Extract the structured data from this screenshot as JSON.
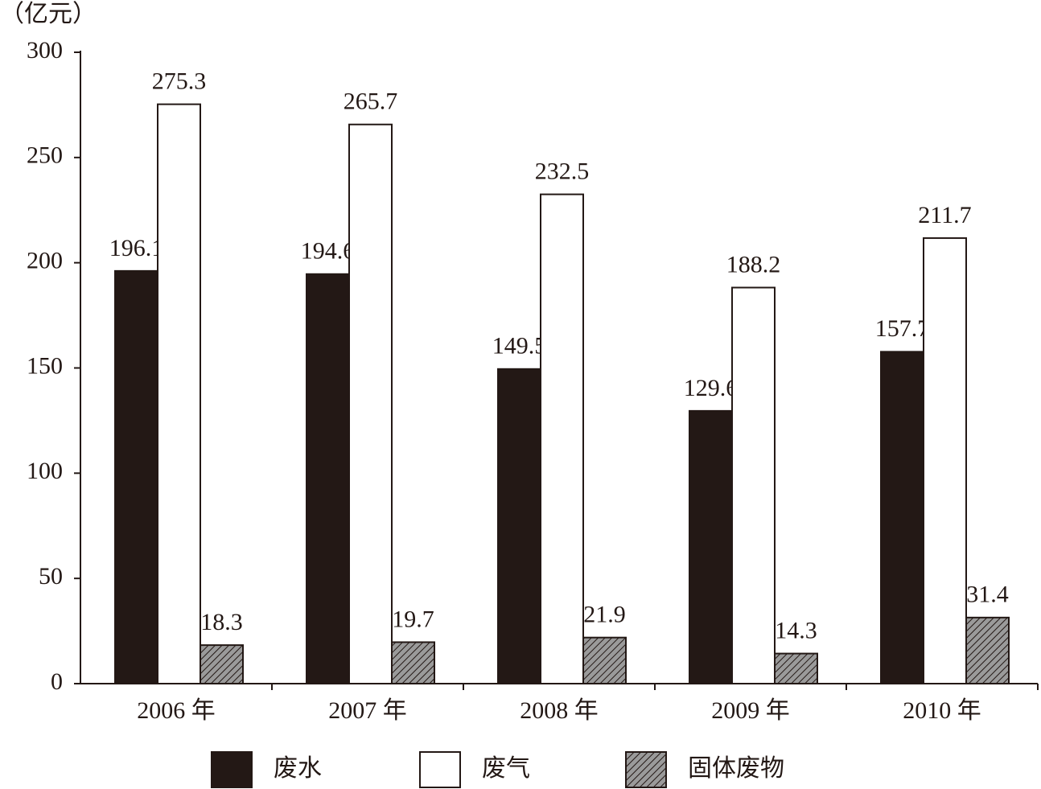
{
  "chart_data": {
    "type": "bar",
    "y_label": "（亿元）",
    "categories": [
      "2006 年",
      "2007 年",
      "2008 年",
      "2009 年",
      "2010 年"
    ],
    "series": [
      {
        "name": "废水",
        "color": "#231815",
        "values": [
          196.1,
          194.6,
          149.5,
          129.6,
          157.7
        ]
      },
      {
        "name": "废气",
        "color": "#ffffff",
        "values": [
          275.3,
          265.7,
          232.5,
          188.2,
          211.7
        ]
      },
      {
        "name": "固体废物",
        "color": "#9a9a9a",
        "hatch": true,
        "values": [
          18.3,
          19.7,
          21.9,
          14.3,
          31.4
        ]
      }
    ],
    "ylim": [
      0,
      300
    ],
    "yticks": [
      0,
      50,
      100,
      150,
      200,
      250,
      300
    ],
    "grid": false
  }
}
